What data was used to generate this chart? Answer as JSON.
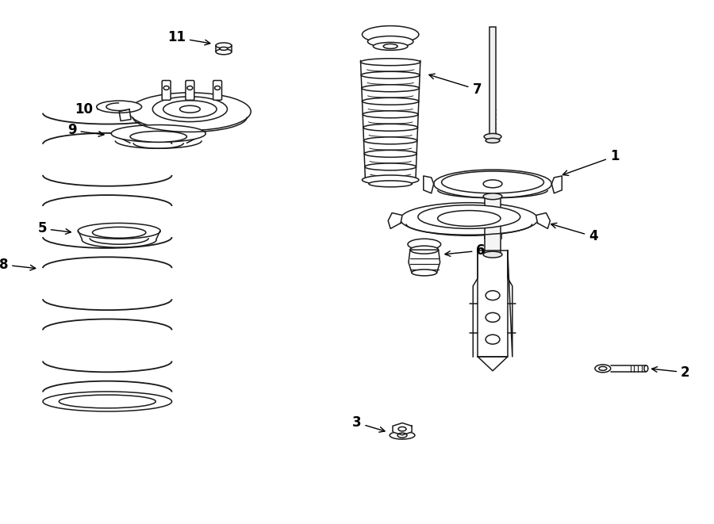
{
  "bg_color": "#ffffff",
  "lc": "#1a1a1a",
  "lw": 1.1,
  "fig_w": 9.0,
  "fig_h": 6.61
}
